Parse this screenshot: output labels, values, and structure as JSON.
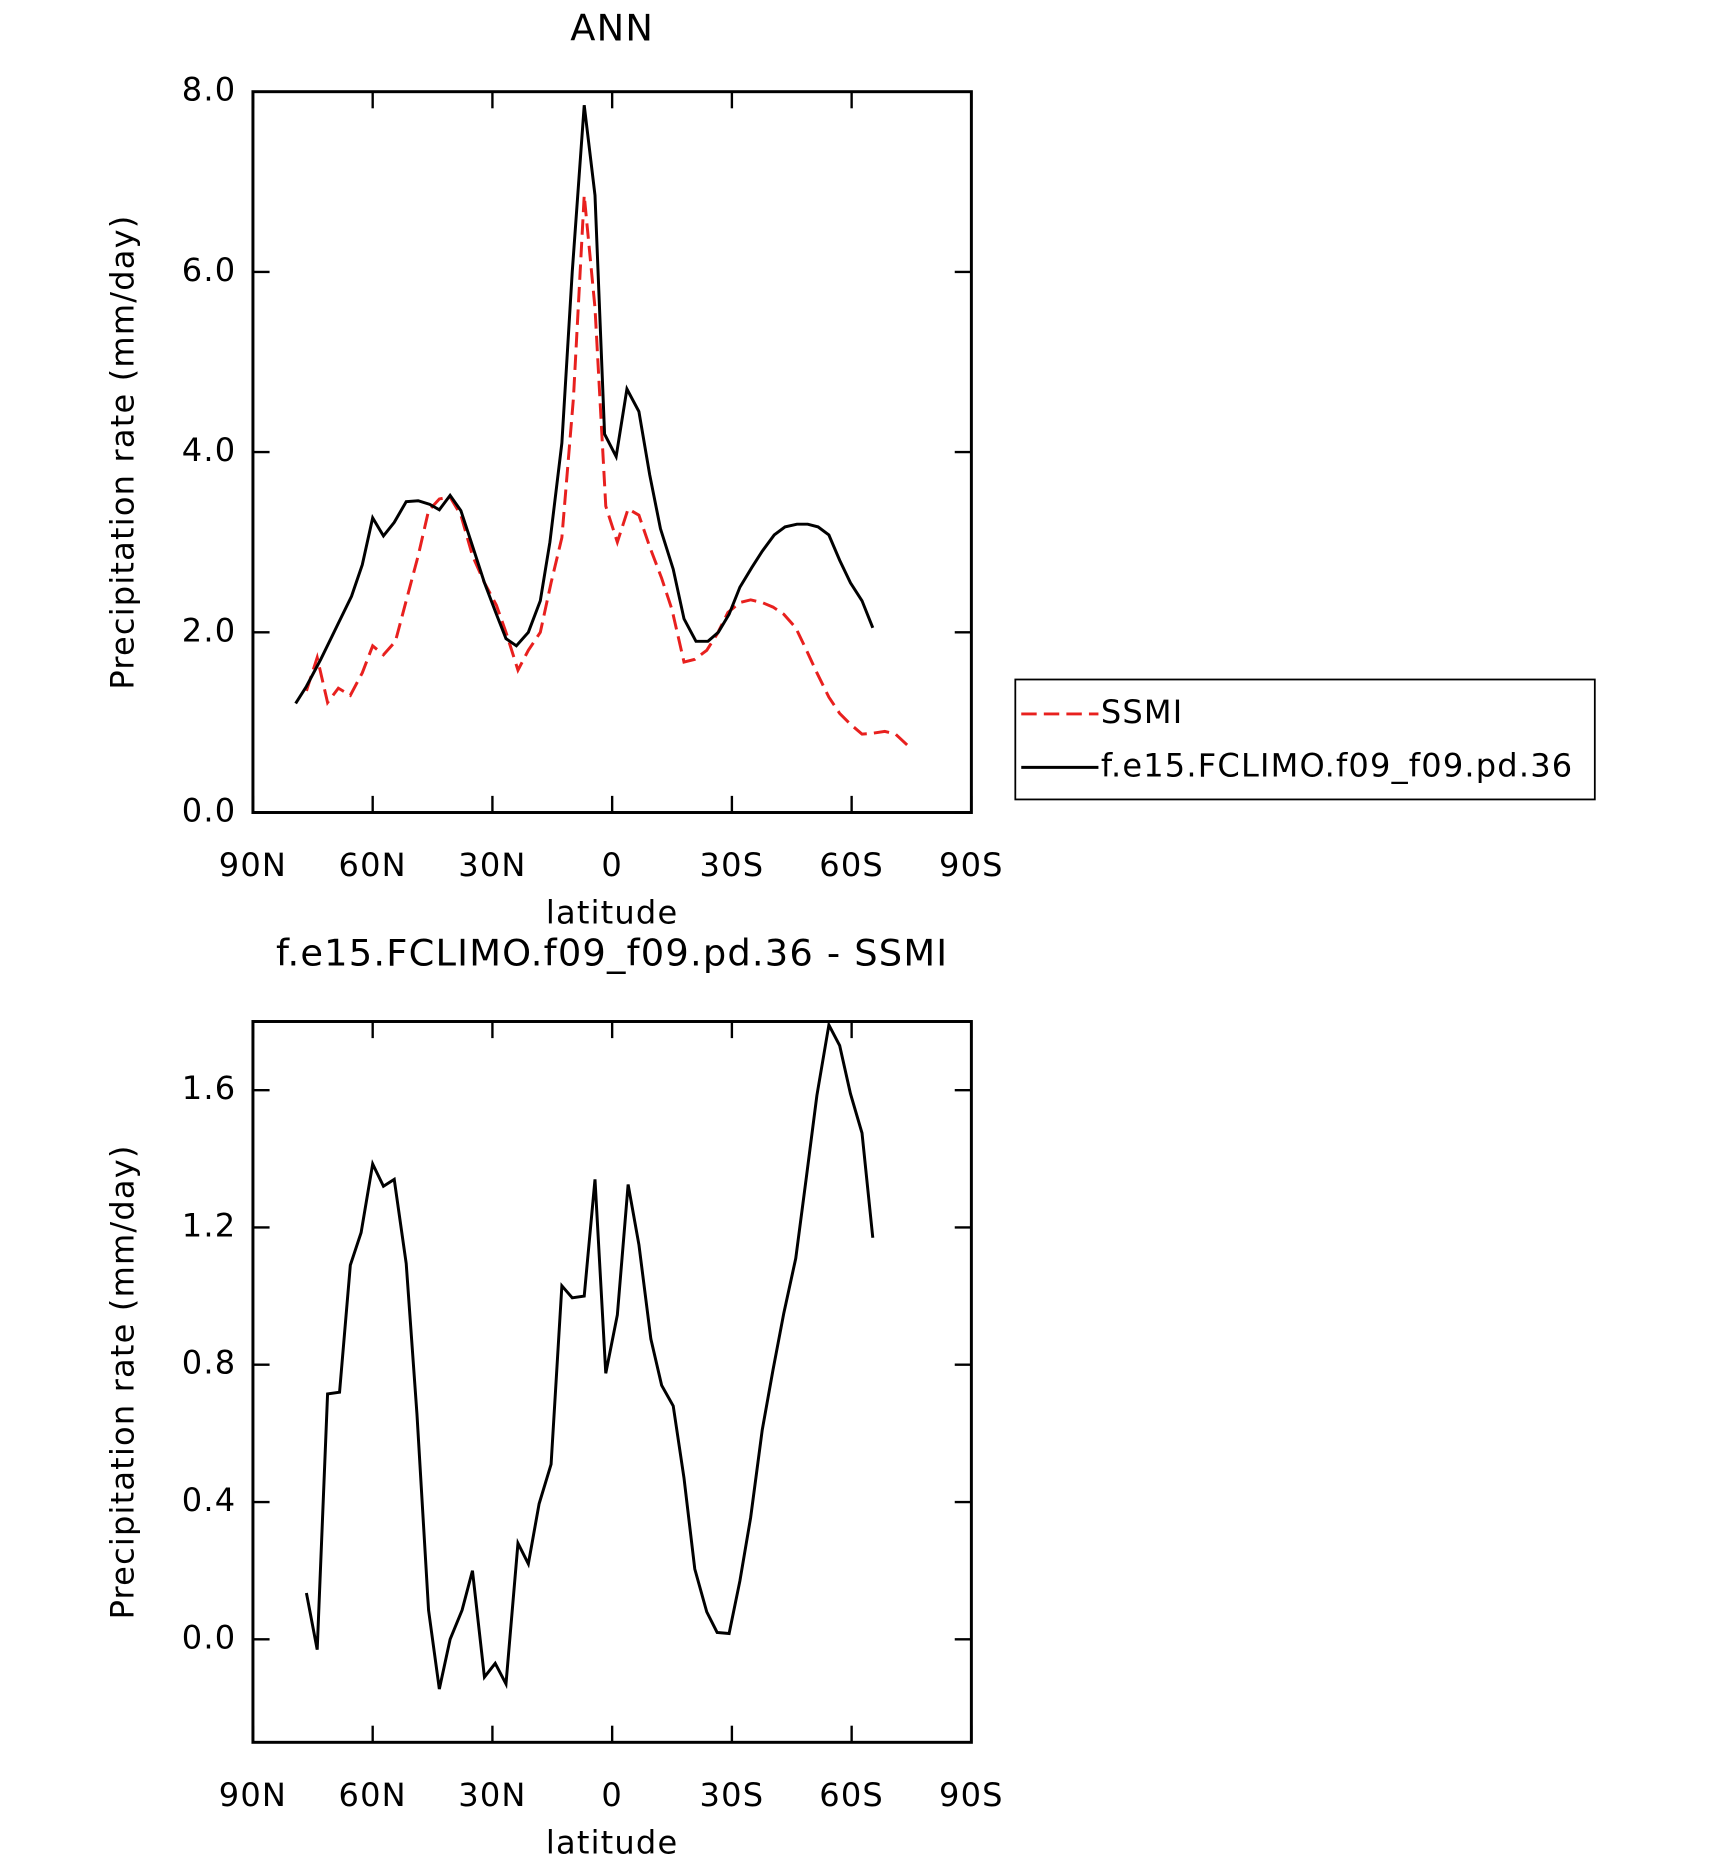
{
  "chart_data": [
    {
      "type": "line",
      "title": "ANN",
      "xlabel": "latitude",
      "ylabel": "Precipitation rate (mm/day)",
      "xlim": [
        90,
        -90
      ],
      "xticks": [
        {
          "value": 90,
          "label": "90N"
        },
        {
          "value": 60,
          "label": "60N"
        },
        {
          "value": 30,
          "label": "30N"
        },
        0,
        {
          "value": -30,
          "label": "30S"
        },
        {
          "value": -60,
          "label": "60S"
        },
        {
          "value": -90,
          "label": "90S"
        }
      ],
      "ylim": [
        0,
        8
      ],
      "yticks": [
        {
          "value": 0,
          "label": "0.0"
        },
        {
          "value": 2,
          "label": "2.0"
        },
        {
          "value": 4,
          "label": "4.0"
        },
        {
          "value": 6,
          "label": "6.0"
        },
        {
          "value": 8,
          "label": "8.0"
        }
      ],
      "legend": "right",
      "series": [
        {
          "name": "SSMI",
          "color": "#e8201e",
          "dashed": true,
          "x": [
            76.6,
            73.9,
            71.3,
            68.6,
            65.6,
            62.6,
            60.0,
            57.3,
            54.3,
            51.6,
            48.6,
            46.0,
            43.3,
            40.6,
            37.9,
            35.0,
            32.0,
            29.0,
            26.6,
            23.6,
            21.0,
            18.0,
            15.3,
            12.6,
            9.7,
            7.0,
            4.3,
            1.6,
            -1.3,
            -4.0,
            -6.7,
            -9.4,
            -12.4,
            -15.0,
            -18.0,
            -20.7,
            -23.7,
            -26.3,
            -29.0,
            -32.0,
            -34.7,
            -37.6,
            -40.3,
            -43.0,
            -46.0,
            -48.7,
            -51.3,
            -54.3,
            -57.0,
            -59.7,
            -62.6,
            -65.3,
            -68.3,
            -71.0,
            -73.9
          ],
          "values": [
            1.35,
            1.72,
            1.22,
            1.38,
            1.3,
            1.55,
            1.85,
            1.75,
            1.9,
            2.35,
            2.85,
            3.35,
            3.48,
            3.5,
            3.3,
            2.85,
            2.55,
            2.3,
            2.0,
            1.58,
            1.8,
            2.0,
            2.55,
            3.05,
            4.6,
            6.85,
            5.6,
            3.4,
            3.0,
            3.37,
            3.3,
            2.95,
            2.6,
            2.25,
            1.67,
            1.7,
            1.8,
            1.98,
            2.22,
            2.33,
            2.36,
            2.33,
            2.28,
            2.2,
            2.05,
            1.8,
            1.55,
            1.28,
            1.1,
            0.98,
            0.87,
            0.88,
            0.9,
            0.87,
            0.75
          ]
        },
        {
          "name": "f.e15.FCLIMO.f09_f09.pd.36",
          "color": "#000000",
          "dashed": false,
          "x": [
            79.3,
            76.6,
            73.0,
            68.6,
            65.3,
            62.6,
            60.0,
            57.3,
            54.6,
            51.6,
            48.6,
            45.7,
            43.3,
            40.6,
            37.9,
            35.3,
            32.0,
            29.0,
            26.6,
            24.0,
            21.0,
            18.0,
            15.6,
            12.6,
            10.0,
            7.0,
            4.3,
            1.9,
            -1.0,
            -3.7,
            -6.7,
            -9.4,
            -12.1,
            -15.3,
            -18.0,
            -21.0,
            -24.0,
            -26.6,
            -29.3,
            -32.0,
            -35.0,
            -37.6,
            -40.6,
            -43.3,
            -46.3,
            -49.0,
            -51.6,
            -54.3,
            -57.0,
            -59.7,
            -62.6,
            -65.3
          ],
          "values": [
            1.21,
            1.4,
            1.7,
            2.1,
            2.4,
            2.75,
            3.27,
            3.07,
            3.22,
            3.45,
            3.46,
            3.42,
            3.36,
            3.52,
            3.35,
            3.0,
            2.55,
            2.2,
            1.93,
            1.85,
            2.0,
            2.35,
            3.0,
            4.1,
            6.0,
            7.85,
            6.85,
            4.2,
            3.95,
            4.7,
            4.45,
            3.75,
            3.15,
            2.7,
            2.15,
            1.9,
            1.9,
            2.0,
            2.2,
            2.5,
            2.72,
            2.9,
            3.08,
            3.17,
            3.2,
            3.2,
            3.17,
            3.08,
            2.8,
            2.55,
            2.35,
            2.05
          ]
        }
      ]
    },
    {
      "type": "line",
      "title": "f.e15.FCLIMO.f09_f09.pd.36 - SSMI",
      "xlabel": "latitude",
      "ylabel": "Precipitation rate (mm/day)",
      "xlim": [
        90,
        -90
      ],
      "xticks": [
        {
          "value": 90,
          "label": "90N"
        },
        {
          "value": 60,
          "label": "60N"
        },
        {
          "value": 30,
          "label": "30N"
        },
        0,
        {
          "value": -30,
          "label": "30S"
        },
        {
          "value": -60,
          "label": "60S"
        },
        {
          "value": -90,
          "label": "90S"
        }
      ],
      "ylim": [
        -0.3,
        1.8
      ],
      "yticks": [
        {
          "value": 0,
          "label": "0.0"
        },
        0.4,
        0.8,
        1.2,
        1.6
      ],
      "series": [
        {
          "color": "#000000",
          "dashed": false,
          "x": [
            76.6,
            73.9,
            71.3,
            68.3,
            65.6,
            62.9,
            60.0,
            57.3,
            54.6,
            51.6,
            48.9,
            46.0,
            43.3,
            40.6,
            37.6,
            35.0,
            32.0,
            29.3,
            26.6,
            23.6,
            21.0,
            18.3,
            15.3,
            12.6,
            10.0,
            7.0,
            4.3,
            1.6,
            -1.3,
            -4.0,
            -6.7,
            -9.7,
            -12.4,
            -15.3,
            -18.0,
            -20.7,
            -23.7,
            -26.3,
            -29.3,
            -32.0,
            -34.7,
            -37.6,
            -40.3,
            -43.0,
            -46.0,
            -48.7,
            -51.3,
            -54.3,
            -57.0,
            -59.7,
            -62.6,
            -65.3
          ],
          "values": [
            0.135,
            -0.03,
            0.715,
            0.72,
            1.09,
            1.185,
            1.385,
            1.32,
            1.34,
            1.095,
            0.655,
            0.085,
            -0.145,
            0.0,
            0.085,
            0.2,
            -0.11,
            -0.07,
            -0.13,
            0.28,
            0.22,
            0.395,
            0.51,
            1.03,
            0.995,
            1.0,
            1.34,
            0.775,
            0.945,
            1.325,
            1.15,
            0.875,
            0.74,
            0.68,
            0.47,
            0.205,
            0.08,
            0.02,
            0.017,
            0.17,
            0.355,
            0.61,
            0.785,
            0.95,
            1.11,
            1.35,
            1.585,
            1.79,
            1.73,
            1.59,
            1.475,
            1.17
          ]
        }
      ]
    }
  ]
}
